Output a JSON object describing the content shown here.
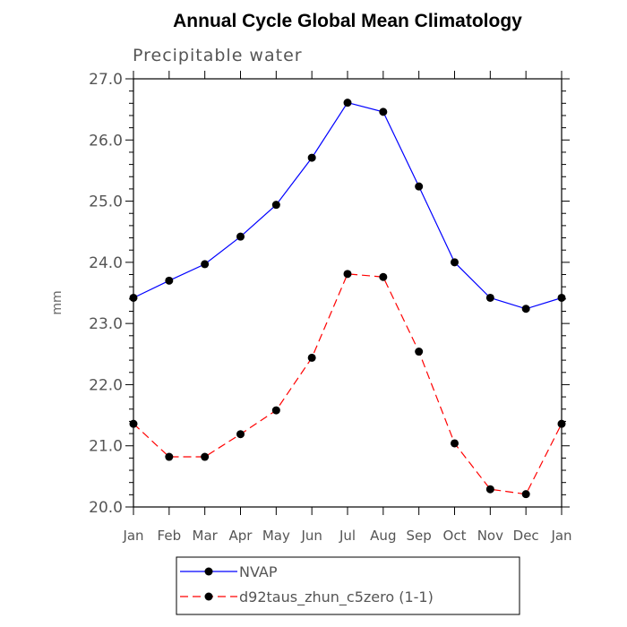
{
  "chart_data": {
    "type": "line",
    "title": "Annual Cycle Global Mean Climatology",
    "subtitle": "Precipitable water",
    "xlabel": "",
    "ylabel": "mm",
    "categories": [
      "Jan",
      "Feb",
      "Mar",
      "Apr",
      "May",
      "Jun",
      "Jul",
      "Aug",
      "Sep",
      "Oct",
      "Nov",
      "Dec",
      "Jan"
    ],
    "ylim": [
      20.0,
      27.0
    ],
    "yticks": [
      "20.0",
      "21.0",
      "22.0",
      "23.0",
      "24.0",
      "25.0",
      "26.0",
      "27.0"
    ],
    "grid": false,
    "legend_position": "bottom",
    "series": [
      {
        "name": "NVAP",
        "color": "#0000ff",
        "line_style": "solid",
        "marker": "filled-circle",
        "values": [
          23.42,
          23.7,
          23.97,
          24.42,
          24.94,
          25.71,
          26.61,
          26.46,
          25.24,
          24.0,
          23.42,
          23.24,
          23.42
        ]
      },
      {
        "name": "d92taus_zhun_c5zero (1-1)",
        "color": "#ff0000",
        "line_style": "dashed",
        "marker": "filled-circle",
        "values": [
          21.36,
          20.82,
          20.82,
          21.19,
          21.58,
          22.44,
          23.81,
          23.76,
          22.54,
          21.04,
          20.29,
          20.21,
          21.36
        ]
      }
    ]
  }
}
